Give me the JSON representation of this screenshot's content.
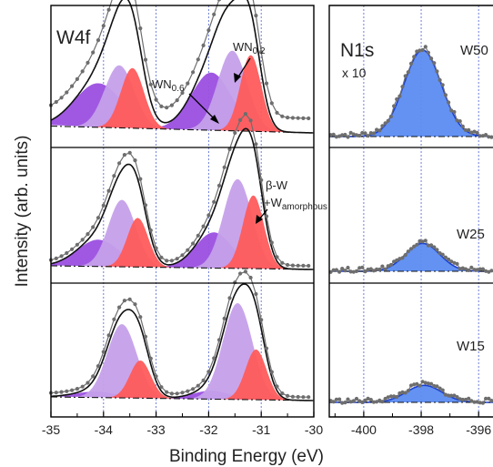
{
  "figure": {
    "ylabel": "Intensity (arb. units)",
    "xlabel": "Binding Energy (eV)"
  },
  "colors": {
    "violet_dark": "#9b4fe0",
    "violet_light": "#c5a0ea",
    "red": "#ff5b5b",
    "blue": "#5c8cf2",
    "fit_line": "#111111",
    "data_points": "#6e6e6e",
    "background_line": "#111111",
    "guide_line": "#6f7fd6"
  },
  "chart_data": [
    {
      "panel": "W4f",
      "type": "line",
      "title": "W4f",
      "xlim": [
        -35,
        -30
      ],
      "xticks": [
        -35,
        -34,
        -33,
        -32,
        -31,
        -30
      ],
      "tick_labels": [
        "-35",
        "-34",
        "-33",
        "-32",
        "-31",
        "-30"
      ],
      "reference_lines_x": [
        -34.0,
        -33.0,
        -32.0,
        -31.0
      ],
      "annotations": [
        {
          "base": "WN",
          "sub": "0.6"
        },
        {
          "base": "WN",
          "sub": "0.2"
        },
        {
          "line1": "β-W",
          "line2_base": "+W",
          "line2_sub": "amorphous"
        }
      ],
      "subpanels": [
        {
          "peaks": [
            {
              "component": "WN0.6",
              "center": -34.1,
              "height": 0.55,
              "width": 0.45,
              "color": "violet_dark"
            },
            {
              "component": "WN0.2",
              "center": -33.7,
              "height": 0.78,
              "width": 0.28,
              "color": "violet_light"
            },
            {
              "component": "β-W",
              "center": -33.45,
              "height": 0.75,
              "width": 0.22,
              "color": "red"
            },
            {
              "component": "WN0.6",
              "center": -31.95,
              "height": 0.72,
              "width": 0.38,
              "color": "violet_dark"
            },
            {
              "component": "WN0.2",
              "center": -31.55,
              "height": 1.0,
              "width": 0.28,
              "color": "violet_light"
            },
            {
              "component": "β-W",
              "center": -31.2,
              "height": 0.95,
              "width": 0.2,
              "color": "red"
            }
          ],
          "peak_sum": [
            [
              -35.0,
              0.17
            ],
            [
              -34.8,
              0.25
            ],
            [
              -34.6,
              0.42
            ],
            [
              -34.4,
              0.69
            ],
            [
              -34.2,
              0.97
            ],
            [
              -34.0,
              1.16
            ],
            [
              -33.8,
              1.24
            ],
            [
              -33.6,
              1.25
            ],
            [
              -33.4,
              1.19
            ],
            [
              -33.2,
              1.01
            ],
            [
              -33.0,
              0.79
            ],
            [
              -32.8,
              0.71
            ],
            [
              -32.6,
              0.77
            ],
            [
              -32.4,
              0.9
            ],
            [
              -32.2,
              1.09
            ],
            [
              -32.0,
              1.32
            ],
            [
              -31.8,
              1.6
            ],
            [
              -31.6,
              1.74
            ],
            [
              -31.4,
              1.72
            ],
            [
              -31.2,
              1.56
            ],
            [
              -31.0,
              1.13
            ],
            [
              -30.8,
              0.64
            ],
            [
              -30.6,
              0.31
            ],
            [
              -30.4,
              0.19
            ],
            [
              -30.2,
              0.15
            ],
            [
              -30.0,
              0.12
            ]
          ]
        },
        {
          "peaks": [
            {
              "component": "WN0.6",
              "center": -34.1,
              "height": 0.3,
              "width": 0.4,
              "color": "violet_dark"
            },
            {
              "component": "WN0.2",
              "center": -33.65,
              "height": 0.75,
              "width": 0.26,
              "color": "violet_light"
            },
            {
              "component": "β-W",
              "center": -33.35,
              "height": 0.55,
              "width": 0.2,
              "color": "red"
            },
            {
              "component": "WN0.6",
              "center": -31.9,
              "height": 0.4,
              "width": 0.35,
              "color": "violet_dark"
            },
            {
              "component": "WN0.2",
              "center": -31.45,
              "height": 1.0,
              "width": 0.27,
              "color": "violet_light"
            },
            {
              "component": "β-W",
              "center": -31.15,
              "height": 0.82,
              "width": 0.2,
              "color": "red"
            }
          ],
          "peak_sum": [
            [
              -35.0,
              0.08
            ],
            [
              -34.8,
              0.1
            ],
            [
              -34.6,
              0.16
            ],
            [
              -34.4,
              0.27
            ],
            [
              -34.2,
              0.5
            ],
            [
              -34.0,
              0.75
            ],
            [
              -33.8,
              0.95
            ],
            [
              -33.6,
              1.04
            ],
            [
              -33.4,
              0.94
            ],
            [
              -33.2,
              0.74
            ],
            [
              -33.0,
              0.53
            ],
            [
              -32.8,
              0.43
            ],
            [
              -32.6,
              0.41
            ],
            [
              -32.4,
              0.45
            ],
            [
              -32.2,
              0.56
            ],
            [
              -32.0,
              0.74
            ],
            [
              -31.8,
              1.01
            ],
            [
              -31.6,
              1.32
            ],
            [
              -31.4,
              1.49
            ],
            [
              -31.2,
              1.42
            ],
            [
              -31.0,
              1.12
            ],
            [
              -30.8,
              0.63
            ],
            [
              -30.6,
              0.28
            ],
            [
              -30.4,
              0.14
            ],
            [
              -30.2,
              0.1
            ],
            [
              -30.0,
              0.08
            ]
          ]
        },
        {
          "peaks": [
            {
              "component": "WN0.6",
              "center": -34.15,
              "height": 0.07,
              "width": 0.4,
              "color": "violet_dark"
            },
            {
              "component": "WN0.2",
              "center": -33.65,
              "height": 0.88,
              "width": 0.28,
              "color": "violet_light"
            },
            {
              "component": "β-W",
              "center": -33.3,
              "height": 0.45,
              "width": 0.2,
              "color": "red"
            },
            {
              "component": "WN0.6",
              "center": -31.95,
              "height": 0.1,
              "width": 0.35,
              "color": "violet_dark"
            },
            {
              "component": "WN0.2",
              "center": -31.45,
              "height": 1.15,
              "width": 0.28,
              "color": "violet_light"
            },
            {
              "component": "β-W",
              "center": -31.1,
              "height": 0.6,
              "width": 0.2,
              "color": "red"
            }
          ],
          "peak_sum": [
            [
              -35.0,
              0.05
            ],
            [
              -34.8,
              0.06
            ],
            [
              -34.6,
              0.07
            ],
            [
              -34.4,
              0.13
            ],
            [
              -34.2,
              0.3
            ],
            [
              -34.0,
              0.58
            ],
            [
              -33.8,
              0.87
            ],
            [
              -33.6,
              1.0
            ],
            [
              -33.4,
              0.9
            ],
            [
              -33.2,
              0.66
            ],
            [
              -33.0,
              0.41
            ],
            [
              -32.8,
              0.28
            ],
            [
              -32.6,
              0.24
            ],
            [
              -32.4,
              0.27
            ],
            [
              -32.2,
              0.38
            ],
            [
              -32.0,
              0.6
            ],
            [
              -31.8,
              0.94
            ],
            [
              -31.6,
              1.3
            ],
            [
              -31.4,
              1.48
            ],
            [
              -31.2,
              1.39
            ],
            [
              -31.0,
              1.06
            ],
            [
              -30.8,
              0.6
            ],
            [
              -30.6,
              0.26
            ],
            [
              -30.4,
              0.11
            ],
            [
              -30.2,
              0.07
            ],
            [
              -30.0,
              0.05
            ]
          ]
        }
      ]
    },
    {
      "panel": "N1s",
      "type": "line",
      "title": "N1s",
      "scale_label": "x 10",
      "xlim": [
        -401.2,
        -395.5
      ],
      "xticks": [
        -400,
        -398,
        -396
      ],
      "tick_labels": [
        "-400",
        "-398",
        "-396"
      ],
      "reference_lines_x": [
        -400.0,
        -398.0,
        -396.0
      ],
      "subpanels": [
        {
          "sample": "W50",
          "peak": {
            "center": -397.95,
            "height": 1.0,
            "width": 0.65
          }
        },
        {
          "sample": "W25",
          "peak": {
            "center": -397.95,
            "height": 0.36,
            "width": 0.6
          }
        },
        {
          "sample": "W15",
          "peak": {
            "center": -397.9,
            "height": 0.22,
            "width": 0.62
          }
        }
      ]
    }
  ]
}
